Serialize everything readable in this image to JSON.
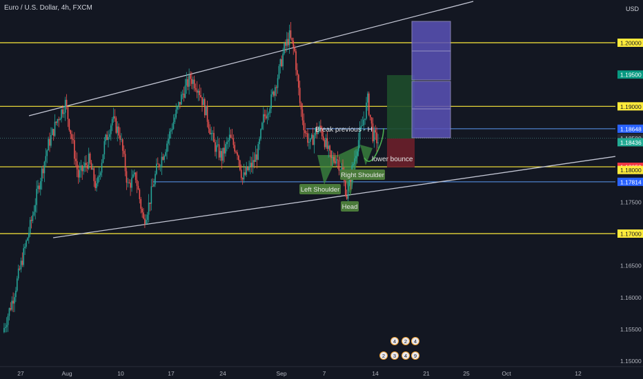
{
  "header": {
    "symbol_title": "Euro / U.S. Dollar, 4h, FXCM",
    "currency": "USD"
  },
  "colors": {
    "background": "#131722",
    "up_candle": "#26a69a",
    "down_candle": "#ef5350",
    "level_line": "#ffeb3b",
    "trendline": "#c5c8d6",
    "pattern_fill": "#3d8c40",
    "label_bg": "#4a7a3a",
    "target_box": "#5a52b8",
    "profit_zone": "#1e4d2b",
    "loss_zone": "#6b1f2a",
    "break_line": "#5b9cf6",
    "axis_text": "#b2b5be"
  },
  "chart_data": {
    "type": "candlestick",
    "title": "Euro / U.S. Dollar, 4h, FXCM",
    "ylim": [
      1.1485,
      1.2145
    ],
    "y_ticks": [
      "1.15000",
      "1.15500",
      "1.16000",
      "1.16500",
      "1.17000",
      "1.17500",
      "1.18000",
      "1.18500",
      "1.19000",
      "1.19500",
      "1.20000"
    ],
    "x_ticks": [
      "27",
      "Aug",
      "10",
      "17",
      "24",
      "Sep",
      "7",
      "14",
      "21",
      "25",
      "Oct",
      "12"
    ],
    "grid": false,
    "horizontal_levels": [
      1.2,
      1.19,
      1.1805,
      1.17
    ],
    "thin_levels": [
      {
        "value": 1.18648,
        "color": "#5b9cf6"
      },
      {
        "value": 1.185,
        "color": "#4e8585"
      },
      {
        "value": 1.17814,
        "color": "#5b9cf6"
      }
    ],
    "price_badges": [
      {
        "value": "1.20000",
        "price": 1.2,
        "bg": "#ffeb3b",
        "fg": "#131722"
      },
      {
        "value": "1.19500",
        "price": 1.195,
        "bg": "#089981",
        "fg": "#ffffff"
      },
      {
        "value": "1.19000",
        "price": 1.19,
        "bg": "#ffeb3b",
        "fg": "#131722"
      },
      {
        "value": "1.18648",
        "price": 1.18648,
        "bg": "#2962ff",
        "fg": "#ffffff"
      },
      {
        "value": "1.18500",
        "price": 1.185,
        "bg": "#2a2e39",
        "fg": "#d1d4dc"
      },
      {
        "value": "1.18436",
        "price": 1.18436,
        "bg": "#22ab94",
        "fg": "#ffffff"
      },
      {
        "value": "1.18050",
        "price": 1.1805,
        "bg": "#f23645",
        "fg": "#ffffff"
      },
      {
        "value": "1.18000",
        "price": 1.18,
        "bg": "#ffeb3b",
        "fg": "#131722"
      },
      {
        "value": "1.17814",
        "price": 1.17814,
        "bg": "#2962ff",
        "fg": "#ffffff"
      },
      {
        "value": "1.17000",
        "price": 1.17,
        "bg": "#ffeb3b",
        "fg": "#131722"
      }
    ],
    "series": [
      {
        "name": "EURUSD",
        "points": [
          [
            0,
            1.1545
          ],
          [
            8,
            1.16
          ],
          [
            15,
            1.166
          ],
          [
            22,
            1.172
          ],
          [
            28,
            1.178
          ],
          [
            35,
            1.184
          ],
          [
            42,
            1.188
          ],
          [
            48,
            1.1905
          ],
          [
            53,
            1.185
          ],
          [
            58,
            1.179
          ],
          [
            66,
            1.1815
          ],
          [
            72,
            1.177
          ],
          [
            78,
            1.184
          ],
          [
            84,
            1.188
          ],
          [
            90,
            1.1855
          ],
          [
            96,
            1.1775
          ],
          [
            102,
            1.179
          ],
          [
            108,
            1.172
          ],
          [
            112,
            1.1745
          ],
          [
            118,
            1.18
          ],
          [
            124,
            1.183
          ],
          [
            130,
            1.187
          ],
          [
            138,
            1.192
          ],
          [
            144,
            1.1945
          ],
          [
            150,
            1.193
          ],
          [
            156,
            1.189
          ],
          [
            162,
            1.184
          ],
          [
            168,
            1.182
          ],
          [
            174,
            1.185
          ],
          [
            180,
            1.183
          ],
          [
            184,
            1.1785
          ],
          [
            188,
            1.18
          ],
          [
            192,
            1.181
          ],
          [
            196,
            1.183
          ],
          [
            200,
            1.188
          ],
          [
            206,
            1.191
          ],
          [
            212,
            1.1955
          ],
          [
            216,
            1.199
          ],
          [
            220,
            1.201
          ],
          [
            224,
            1.1985
          ],
          [
            228,
            1.1905
          ],
          [
            232,
            1.186
          ],
          [
            236,
            1.184
          ],
          [
            240,
            1.186
          ],
          [
            244,
            1.1865
          ],
          [
            248,
            1.184
          ],
          [
            252,
            1.1815
          ],
          [
            256,
            1.182
          ],
          [
            260,
            1.18
          ],
          [
            264,
            1.176
          ],
          [
            268,
            1.18
          ],
          [
            272,
            1.184
          ],
          [
            276,
            1.187
          ],
          [
            280,
            1.191
          ],
          [
            284,
            1.1855
          ],
          [
            288,
            1.1845
          ]
        ]
      }
    ],
    "annotations": {
      "shoulders_labels": [
        "Left Shoulder",
        "Head",
        "Right Shoulder"
      ],
      "break_label": "Break previous - H",
      "bounce_label": "lower bounce"
    },
    "event_markers_top": [
      "4",
      "2",
      "4"
    ],
    "event_markers_bottom": [
      "2",
      "3",
      "4",
      "9"
    ]
  }
}
